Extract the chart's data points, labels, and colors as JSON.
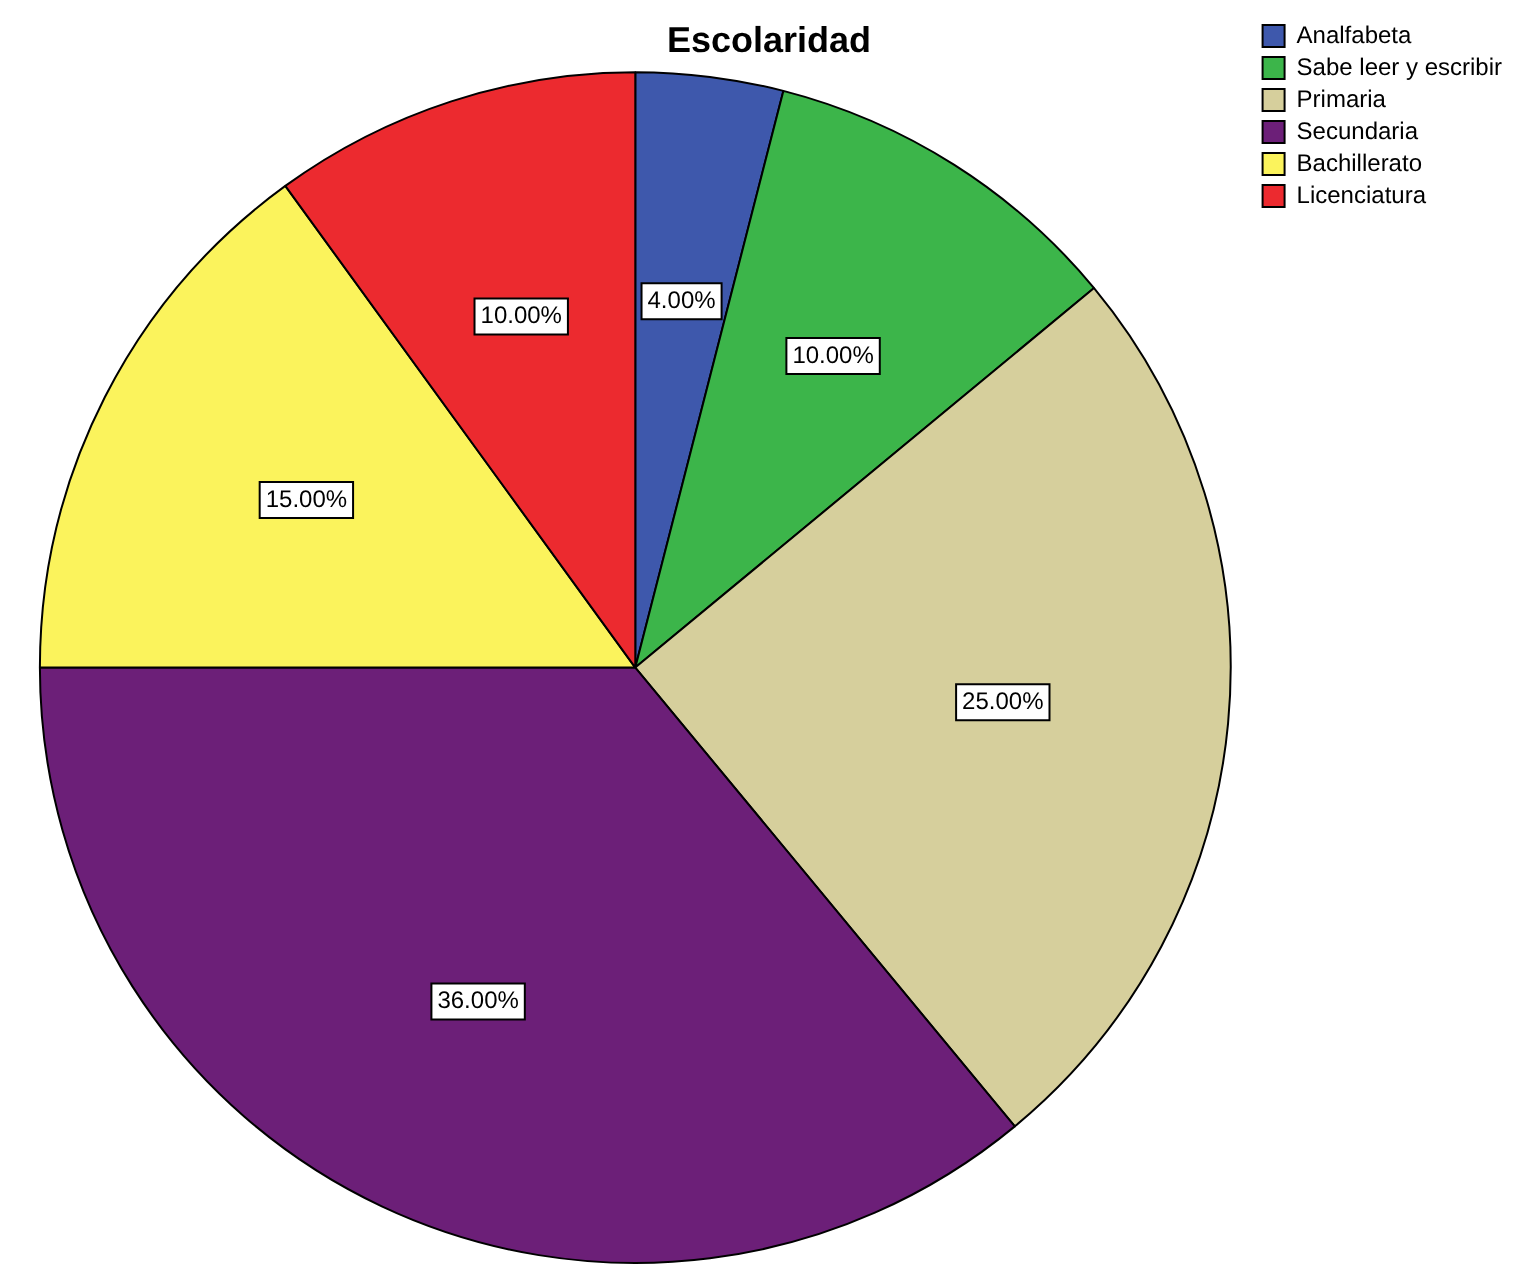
{
  "chart_data": {
    "type": "pie",
    "title": "Escolaridad",
    "categories": [
      "Analfabeta",
      "Sabe leer y escribir",
      "Primaria",
      "Secundaria",
      "Bachillerato",
      "Licenciatura"
    ],
    "values": [
      4,
      10,
      25,
      36,
      15,
      10
    ],
    "colors": [
      "#3e58ac",
      "#3cb54a",
      "#d6cf9c",
      "#6c1f78",
      "#fbf35c",
      "#ec2a2f"
    ],
    "value_labels": [
      "4.00%",
      "10.00%",
      "25.00%",
      "36.00%",
      "15.00%",
      "10.00%"
    ],
    "legend": "top right"
  }
}
